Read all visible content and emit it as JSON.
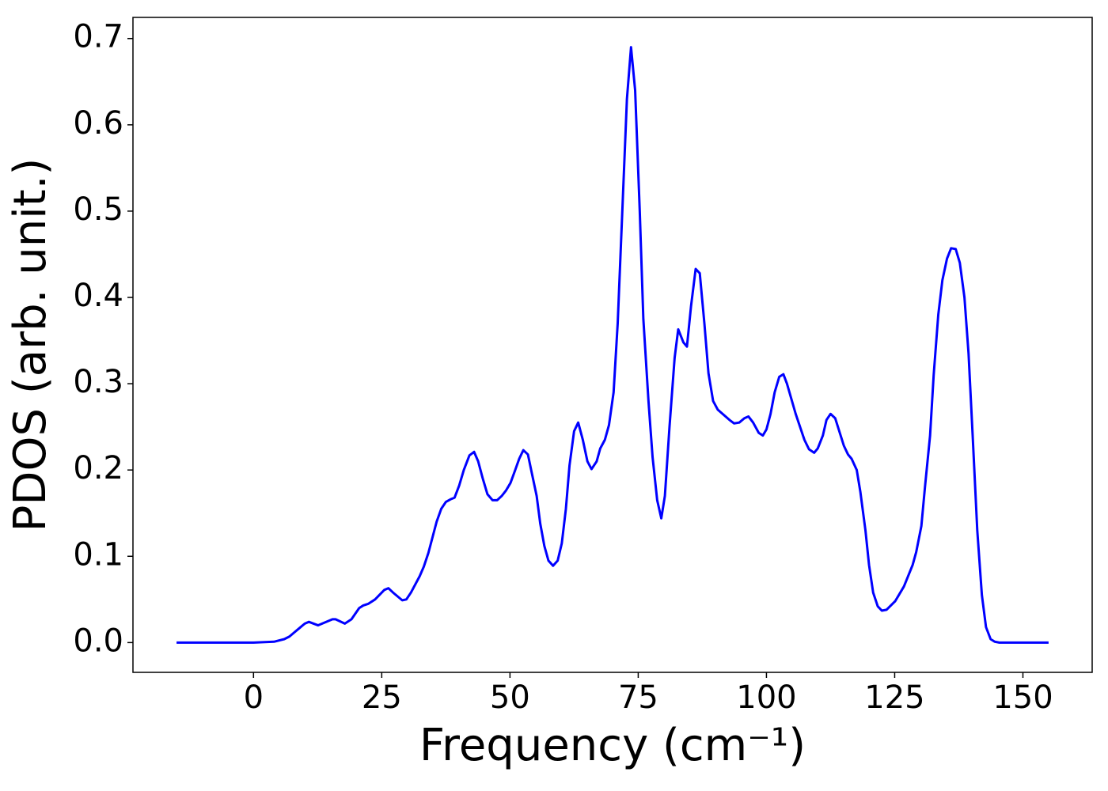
{
  "chart_data": {
    "type": "line",
    "xlabel": "Frequency (cm⁻¹)",
    "ylabel": "PDOS (arb. unit.)",
    "xlim": [
      -23.5,
      163.5
    ],
    "ylim": [
      -0.0345,
      0.7245
    ],
    "xticks": [
      0,
      25,
      50,
      75,
      100,
      125,
      150
    ],
    "yticks": [
      {
        "value": 0,
        "label": "0.0"
      },
      0.1,
      0.2,
      0.3,
      0.4,
      0.5,
      0.6,
      0.7
    ],
    "series": [
      {
        "name": "PDOS",
        "color": "#0000ff",
        "x": [
          -15,
          0,
          4,
          6,
          7,
          8,
          9,
          10,
          10.8,
          12.6,
          15.4,
          16,
          17.8,
          19.1,
          20.6,
          21.4,
          22.4,
          23.7,
          25.5,
          26.3,
          27.2,
          29,
          29.8,
          30.7,
          32.4,
          33.2,
          34.1,
          35.7,
          36.6,
          37.5,
          38.4,
          39.2,
          40.1,
          41,
          42.1,
          43,
          43.8,
          44.7,
          45.6,
          46.6,
          47.5,
          48.4,
          49.2,
          50.1,
          50.9,
          51.8,
          52.6,
          53.5,
          54.2,
          55.2,
          55.9,
          56.7,
          57.5,
          58.4,
          59.3,
          60.1,
          60.9,
          61.6,
          62.5,
          63.3,
          64.2,
          65.1,
          65.9,
          66.9,
          67.6,
          68.5,
          69.3,
          70.2,
          71,
          72.8,
          73.6,
          74.4,
          75.3,
          76,
          77,
          77.8,
          78.7,
          79.5,
          80.2,
          81.1,
          82.1,
          82.8,
          83.8,
          84.5,
          85.3,
          86.2,
          87,
          87.9,
          88.7,
          89.6,
          90.5,
          92.8,
          93.7,
          94.7,
          95.7,
          96.5,
          97.4,
          98.5,
          99.3,
          100,
          100.8,
          101.6,
          102.5,
          103.3,
          104,
          105.7,
          107.4,
          108.3,
          109.3,
          110,
          111,
          111.7,
          112.5,
          113.4,
          115.1,
          115.9,
          116.6,
          117.6,
          118.3,
          119.3,
          120,
          120.8,
          121.7,
          122.5,
          123.4,
          125.1,
          126.8,
          128.5,
          129.2,
          130.2,
          130.9,
          131.9,
          132.6,
          133.5,
          134.3,
          135.2,
          136,
          136.9,
          137.7,
          138.6,
          139.4,
          140.2,
          141.1,
          142,
          142.8,
          143.7,
          144.5,
          145.4,
          155
        ],
        "values": [
          0,
          0,
          0.001,
          0.004,
          0.007,
          0.012,
          0.017,
          0.022,
          0.024,
          0.02,
          0.027,
          0.027,
          0.022,
          0.027,
          0.04,
          0.043,
          0.045,
          0.05,
          0.061,
          0.063,
          0.058,
          0.049,
          0.05,
          0.058,
          0.077,
          0.088,
          0.104,
          0.14,
          0.155,
          0.163,
          0.166,
          0.168,
          0.182,
          0.2,
          0.217,
          0.221,
          0.21,
          0.19,
          0.172,
          0.165,
          0.165,
          0.17,
          0.176,
          0.185,
          0.198,
          0.213,
          0.223,
          0.218,
          0.198,
          0.17,
          0.138,
          0.112,
          0.095,
          0.089,
          0.095,
          0.115,
          0.155,
          0.205,
          0.245,
          0.255,
          0.235,
          0.21,
          0.201,
          0.21,
          0.225,
          0.235,
          0.252,
          0.29,
          0.37,
          0.63,
          0.69,
          0.64,
          0.5,
          0.375,
          0.28,
          0.215,
          0.165,
          0.144,
          0.17,
          0.25,
          0.33,
          0.363,
          0.348,
          0.343,
          0.39,
          0.433,
          0.428,
          0.37,
          0.312,
          0.28,
          0.27,
          0.258,
          0.254,
          0.255,
          0.26,
          0.262,
          0.255,
          0.243,
          0.24,
          0.247,
          0.265,
          0.29,
          0.308,
          0.311,
          0.3,
          0.265,
          0.235,
          0.224,
          0.22,
          0.225,
          0.24,
          0.258,
          0.265,
          0.26,
          0.228,
          0.218,
          0.213,
          0.2,
          0.175,
          0.13,
          0.09,
          0.058,
          0.042,
          0.037,
          0.038,
          0.048,
          0.065,
          0.09,
          0.105,
          0.135,
          0.18,
          0.24,
          0.31,
          0.38,
          0.42,
          0.445,
          0.457,
          0.456,
          0.44,
          0.4,
          0.335,
          0.24,
          0.13,
          0.055,
          0.018,
          0.004,
          0.001,
          0,
          0
        ]
      }
    ]
  }
}
